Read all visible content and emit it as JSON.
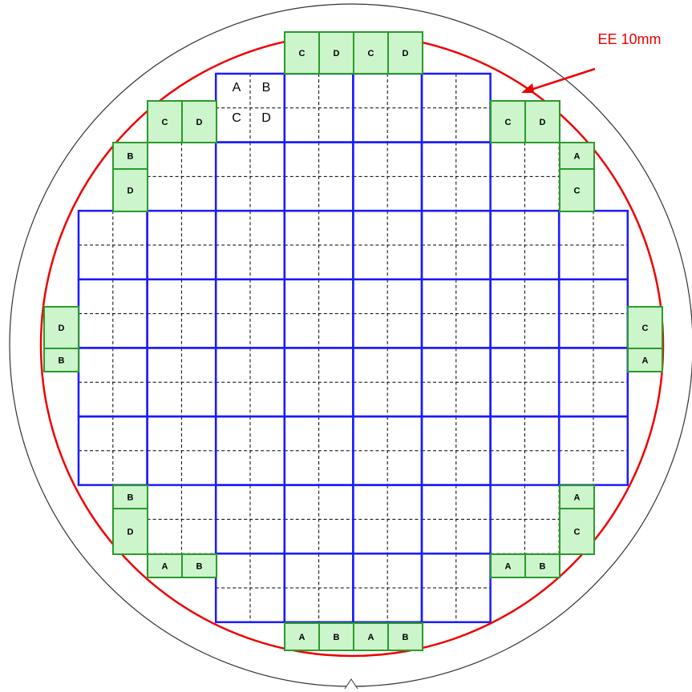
{
  "annotation": "EE 10mm",
  "legend": [
    "A",
    "B",
    "C",
    "D"
  ],
  "edge_labels": [
    "C",
    "D",
    "C",
    "D",
    "C",
    "D",
    "B",
    "D",
    "C",
    "D",
    "A",
    "C",
    "D",
    "B",
    "C",
    "A",
    "B",
    "D",
    "A",
    "B",
    "A",
    "C",
    "A",
    "B",
    "A",
    "B",
    "A",
    "B"
  ]
}
